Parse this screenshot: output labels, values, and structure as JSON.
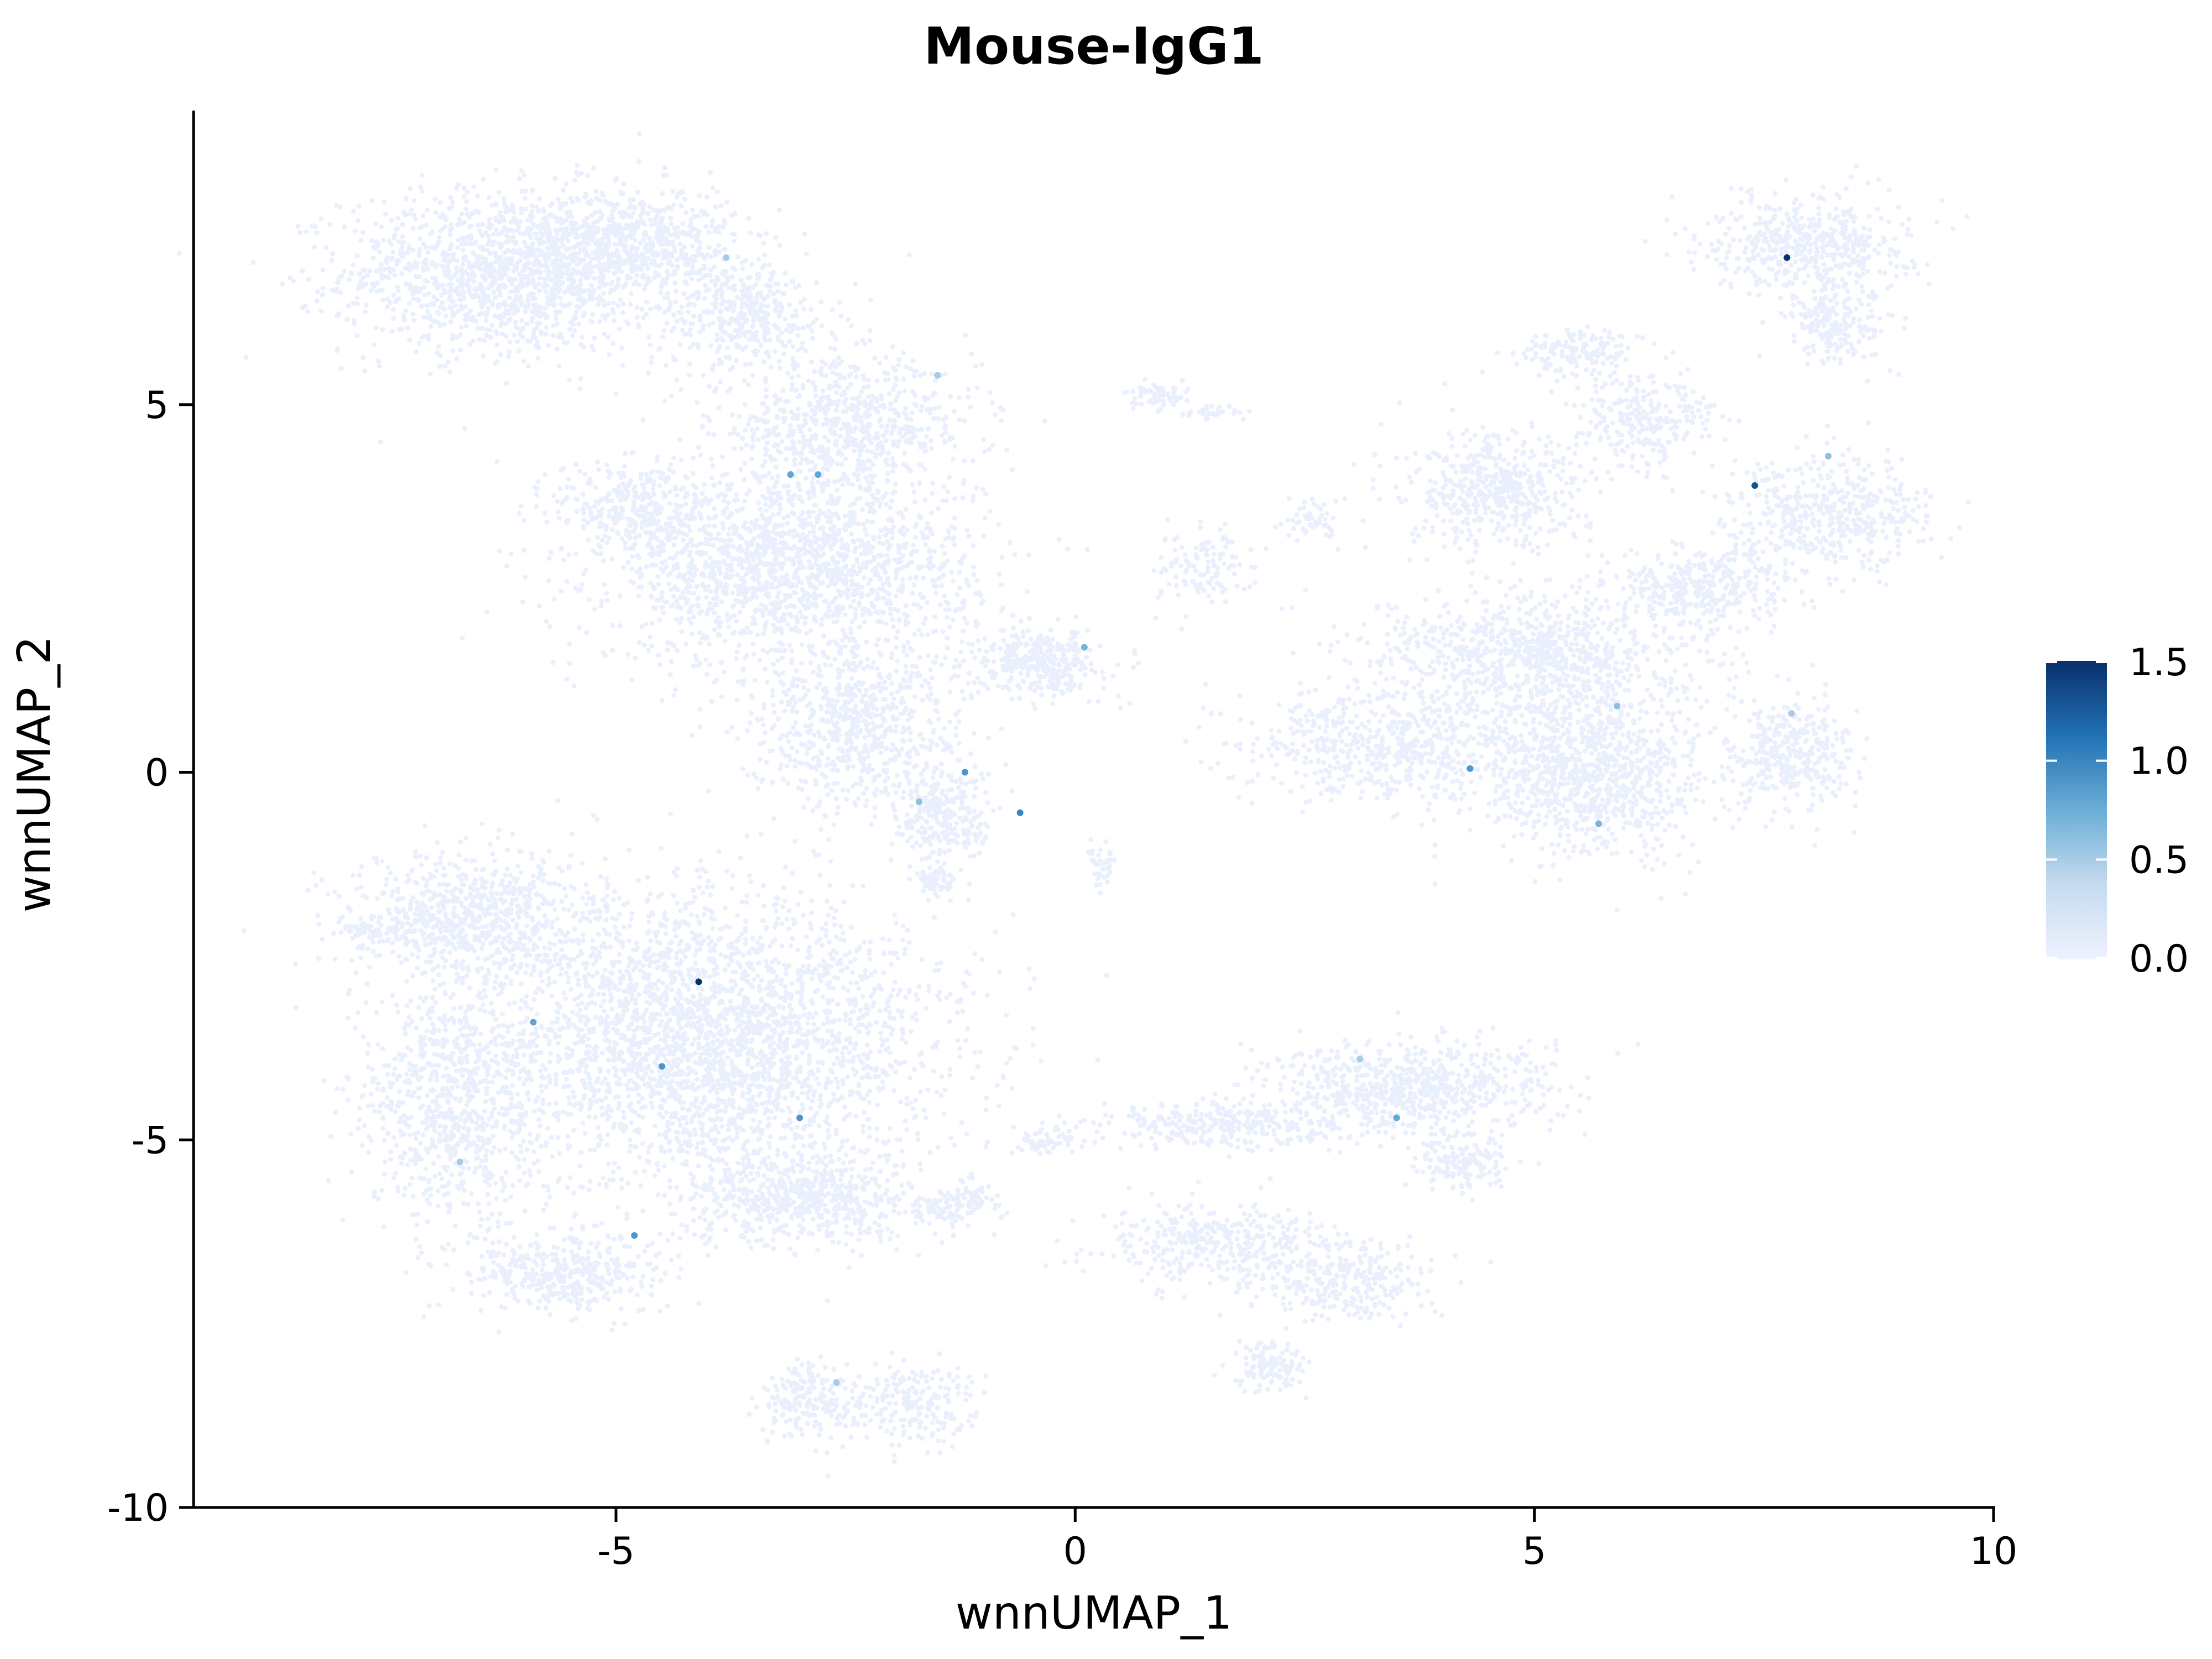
{
  "chart_data": {
    "type": "scatter",
    "title": "Mouse-IgG1",
    "xlabel": "wnnUMAP_1",
    "ylabel": "wnnUMAP_2",
    "xlim": [
      -9.6,
      10
    ],
    "ylim": [
      -10,
      9
    ],
    "x_ticks": [
      -5,
      0,
      5,
      10
    ],
    "x_tick_labels": [
      "-5",
      "0",
      "5",
      "10"
    ],
    "y_ticks": [
      -10,
      -5,
      0,
      5
    ],
    "y_tick_labels": [
      "-10",
      "-5",
      "0",
      "5"
    ],
    "grid": false,
    "legend": {
      "type": "colorbar",
      "position": "right",
      "min": 0.0,
      "max": 1.5,
      "ticks": [
        0.0,
        0.5,
        1.0,
        1.5
      ],
      "tick_labels": [
        "0.0",
        "0.5",
        "1.0",
        "1.5"
      ],
      "colors": [
        "#eef2fe",
        "#c6dbef",
        "#6baed6",
        "#2171b5",
        "#08306b"
      ]
    },
    "base_color": "#e9effc",
    "clusters": [
      {
        "cx": -6.2,
        "cy": 6.8,
        "rx": 1.6,
        "ry": 1.0,
        "n": 1400
      },
      {
        "cx": -4.8,
        "cy": 7.2,
        "rx": 1.0,
        "ry": 0.7,
        "n": 600
      },
      {
        "cx": -3.6,
        "cy": 6.2,
        "rx": 0.9,
        "ry": 0.7,
        "n": 400
      },
      {
        "cx": -2.5,
        "cy": 4.7,
        "rx": 1.3,
        "ry": 0.8,
        "n": 700
      },
      {
        "cx": -3.1,
        "cy": 2.8,
        "rx": 1.8,
        "ry": 1.2,
        "n": 1800
      },
      {
        "cx": -4.8,
        "cy": 3.6,
        "rx": 0.8,
        "ry": 0.6,
        "n": 300
      },
      {
        "cx": -2.4,
        "cy": 0.6,
        "rx": 1.1,
        "ry": 1.0,
        "n": 700
      },
      {
        "cx": -1.4,
        "cy": -0.6,
        "rx": 0.5,
        "ry": 0.6,
        "n": 250
      },
      {
        "cx": -1.5,
        "cy": -1.5,
        "rx": 0.2,
        "ry": 0.2,
        "n": 60
      },
      {
        "cx": -0.4,
        "cy": 1.5,
        "rx": 0.6,
        "ry": 0.4,
        "n": 350
      },
      {
        "cx": 0.3,
        "cy": -1.3,
        "rx": 0.15,
        "ry": 0.3,
        "n": 40
      },
      {
        "cx": 0.9,
        "cy": 5.1,
        "rx": 0.3,
        "ry": 0.15,
        "n": 60
      },
      {
        "cx": 1.5,
        "cy": 4.9,
        "rx": 0.3,
        "ry": 0.1,
        "n": 30
      },
      {
        "cx": 1.4,
        "cy": 2.8,
        "rx": 0.5,
        "ry": 0.5,
        "n": 120
      },
      {
        "cx": 2.6,
        "cy": 3.4,
        "rx": 0.3,
        "ry": 0.3,
        "n": 50
      },
      {
        "cx": 8.0,
        "cy": 7.2,
        "rx": 1.0,
        "ry": 0.6,
        "n": 500
      },
      {
        "cx": 8.3,
        "cy": 6.1,
        "rx": 0.5,
        "ry": 0.5,
        "n": 200
      },
      {
        "cx": 5.5,
        "cy": 5.7,
        "rx": 0.6,
        "ry": 0.3,
        "n": 150
      },
      {
        "cx": 6.2,
        "cy": 4.8,
        "rx": 0.7,
        "ry": 0.6,
        "n": 250
      },
      {
        "cx": 4.6,
        "cy": 3.8,
        "rx": 0.9,
        "ry": 0.7,
        "n": 500
      },
      {
        "cx": 8.2,
        "cy": 3.5,
        "rx": 1.0,
        "ry": 0.7,
        "n": 500
      },
      {
        "cx": 6.8,
        "cy": 2.5,
        "rx": 0.9,
        "ry": 0.5,
        "n": 350
      },
      {
        "cx": 5.0,
        "cy": 1.6,
        "rx": 1.6,
        "ry": 0.8,
        "n": 900
      },
      {
        "cx": 5.6,
        "cy": 0.0,
        "rx": 1.2,
        "ry": 1.0,
        "n": 1000
      },
      {
        "cx": 3.4,
        "cy": 0.4,
        "rx": 1.4,
        "ry": 0.7,
        "n": 600
      },
      {
        "cx": 7.8,
        "cy": 0.2,
        "rx": 0.6,
        "ry": 0.7,
        "n": 350
      },
      {
        "cx": -6.6,
        "cy": -2.0,
        "rx": 1.2,
        "ry": 0.8,
        "n": 700
      },
      {
        "cx": -4.0,
        "cy": -3.6,
        "rx": 2.3,
        "ry": 1.8,
        "n": 3000
      },
      {
        "cx": -6.8,
        "cy": -4.5,
        "rx": 0.9,
        "ry": 1.6,
        "n": 800
      },
      {
        "cx": -5.6,
        "cy": -6.8,
        "rx": 1.0,
        "ry": 0.5,
        "n": 400
      },
      {
        "cx": -3.0,
        "cy": -5.8,
        "rx": 1.2,
        "ry": 0.6,
        "n": 600
      },
      {
        "cx": -7.6,
        "cy": -2.2,
        "rx": 0.4,
        "ry": 0.2,
        "n": 60
      },
      {
        "cx": -2.9,
        "cy": -8.6,
        "rx": 0.5,
        "ry": 0.5,
        "n": 180
      },
      {
        "cx": -1.8,
        "cy": -8.6,
        "rx": 0.6,
        "ry": 0.5,
        "n": 220
      },
      {
        "cx": -1.3,
        "cy": -5.9,
        "rx": 0.5,
        "ry": 0.3,
        "n": 120
      },
      {
        "cx": 3.6,
        "cy": -4.3,
        "rx": 1.4,
        "ry": 0.6,
        "n": 700
      },
      {
        "cx": 1.7,
        "cy": -4.8,
        "rx": 1.2,
        "ry": 0.3,
        "n": 300
      },
      {
        "cx": 4.2,
        "cy": -5.3,
        "rx": 0.5,
        "ry": 0.4,
        "n": 150
      },
      {
        "cx": 1.5,
        "cy": -6.4,
        "rx": 1.1,
        "ry": 0.5,
        "n": 350
      },
      {
        "cx": 2.9,
        "cy": -6.9,
        "rx": 0.8,
        "ry": 0.5,
        "n": 300
      },
      {
        "cx": 2.1,
        "cy": -8.1,
        "rx": 0.4,
        "ry": 0.3,
        "n": 120
      },
      {
        "cx": -0.3,
        "cy": -5.0,
        "rx": 0.4,
        "ry": 0.2,
        "n": 60
      }
    ],
    "highlighted_points": [
      {
        "x": -4.1,
        "y": -2.85,
        "v": 1.5
      },
      {
        "x": 7.75,
        "y": 7.0,
        "v": 1.5
      },
      {
        "x": 7.4,
        "y": 3.9,
        "v": 1.3
      },
      {
        "x": -3.1,
        "y": 4.05,
        "v": 0.8
      },
      {
        "x": -2.8,
        "y": 4.05,
        "v": 0.8
      },
      {
        "x": -1.2,
        "y": 0.0,
        "v": 0.9
      },
      {
        "x": -0.6,
        "y": -0.55,
        "v": 1.0
      },
      {
        "x": 0.1,
        "y": 1.7,
        "v": 0.7
      },
      {
        "x": -4.5,
        "y": -4.0,
        "v": 0.9
      },
      {
        "x": -3.0,
        "y": -4.7,
        "v": 0.9
      },
      {
        "x": -4.8,
        "y": -6.3,
        "v": 0.9
      },
      {
        "x": -5.9,
        "y": -3.4,
        "v": 0.8
      },
      {
        "x": 4.3,
        "y": 0.05,
        "v": 0.9
      },
      {
        "x": 5.7,
        "y": -0.7,
        "v": 0.7
      },
      {
        "x": 3.5,
        "y": -4.7,
        "v": 0.8
      },
      {
        "x": -1.7,
        "y": -0.4,
        "v": 0.6
      },
      {
        "x": -3.8,
        "y": 7.0,
        "v": 0.5
      },
      {
        "x": -1.5,
        "y": 5.4,
        "v": 0.5
      },
      {
        "x": 8.2,
        "y": 4.3,
        "v": 0.6
      },
      {
        "x": -2.6,
        "y": -8.3,
        "v": 0.5
      },
      {
        "x": 3.1,
        "y": -3.9,
        "v": 0.5
      },
      {
        "x": 5.9,
        "y": 0.9,
        "v": 0.6
      },
      {
        "x": 7.8,
        "y": 0.8,
        "v": 0.5
      },
      {
        "x": -6.7,
        "y": -5.3,
        "v": 0.5
      }
    ]
  }
}
